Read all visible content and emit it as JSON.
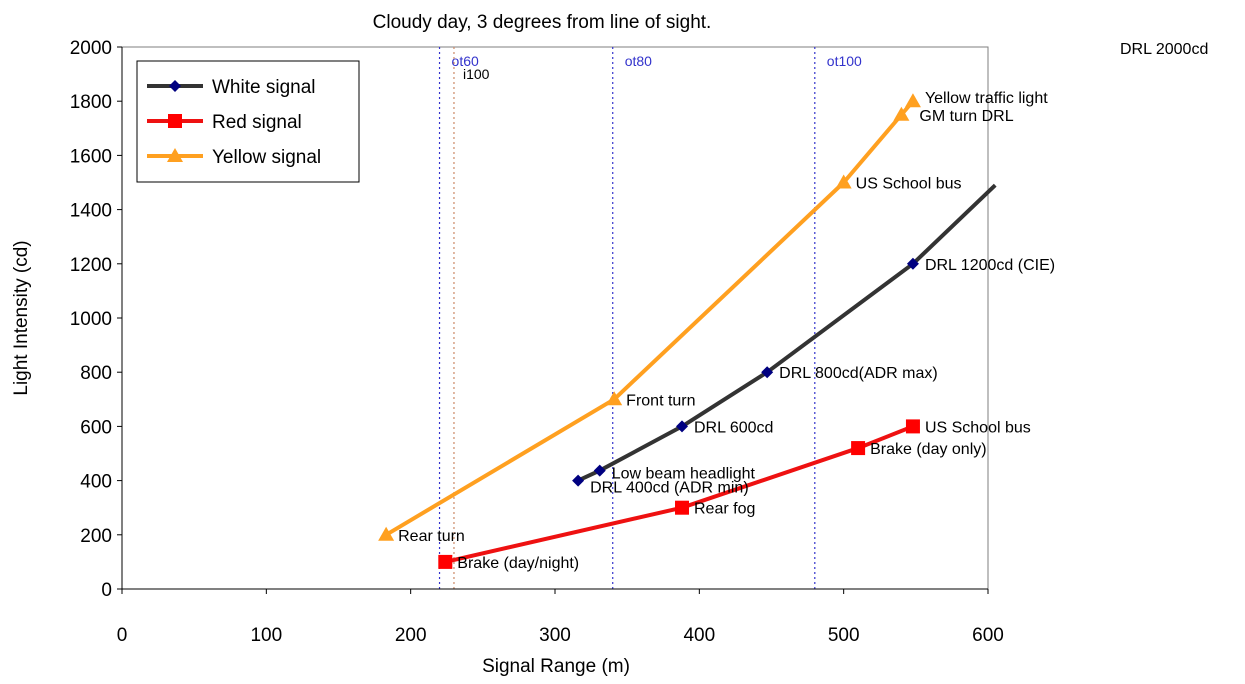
{
  "chart_data": {
    "type": "line",
    "title": "Cloudy day, 3 degrees from line of sight.",
    "xlabel": "Signal Range (m)",
    "ylabel": "Light Intensity (cd)",
    "xlim": [
      0,
      600
    ],
    "ylim": [
      0,
      2000
    ],
    "xticks": [
      "0",
      "100",
      "200",
      "300",
      "400",
      "500",
      "600"
    ],
    "yticks": [
      "0",
      "200",
      "400",
      "600",
      "800",
      "1000",
      "1200",
      "1400",
      "1600",
      "1800",
      "2000"
    ],
    "grid": false,
    "legend_position": "top-left",
    "series": [
      {
        "name": "White signal",
        "color": "#333333",
        "marker_color": "#000080",
        "marker": "diamond",
        "points": [
          {
            "x": 316,
            "y": 400,
            "label": "DRL 400cd (ADR min)"
          },
          {
            "x": 331,
            "y": 437,
            "label": "Low beam headlight"
          },
          {
            "x": 388,
            "y": 600,
            "label": "DRL 600cd"
          },
          {
            "x": 447,
            "y": 800,
            "label": "DRL 800cd(ADR max)"
          },
          {
            "x": 548,
            "y": 1200,
            "label": "DRL 1200cd (CIE)"
          },
          {
            "x": 605,
            "y": 1490,
            "label": ""
          }
        ]
      },
      {
        "name": "Red signal",
        "color": "#ee1111",
        "marker_color": "#ff0000",
        "marker": "square",
        "points": [
          {
            "x": 224,
            "y": 100,
            "label": "Brake (day/night)"
          },
          {
            "x": 388,
            "y": 300,
            "label": "Rear fog"
          },
          {
            "x": 510,
            "y": 520,
            "label": "Brake (day only)"
          },
          {
            "x": 548,
            "y": 600,
            "label": "US School bus"
          }
        ]
      },
      {
        "name": "Yellow signal",
        "color": "#ffa020",
        "marker_color": "#ffa020",
        "marker": "triangle",
        "points": [
          {
            "x": 183,
            "y": 200,
            "label": "Rear turn"
          },
          {
            "x": 341,
            "y": 700,
            "label": "Front turn"
          },
          {
            "x": 500,
            "y": 1500,
            "label": "US School bus"
          },
          {
            "x": 540,
            "y": 1750,
            "label": "GM turn DRL"
          },
          {
            "x": 548,
            "y": 1800,
            "label": "Yellow traffic light"
          }
        ]
      }
    ],
    "reference_lines": [
      {
        "x": 220,
        "label": "ot60",
        "color": "#3333cc"
      },
      {
        "x": 230,
        "label": "i100",
        "color": "#cc8866"
      },
      {
        "x": 340,
        "label": "ot80",
        "color": "#3333cc"
      },
      {
        "x": 480,
        "label": "ot100",
        "color": "#3333cc"
      }
    ],
    "annotations": [
      "DRL 2000cd"
    ]
  }
}
